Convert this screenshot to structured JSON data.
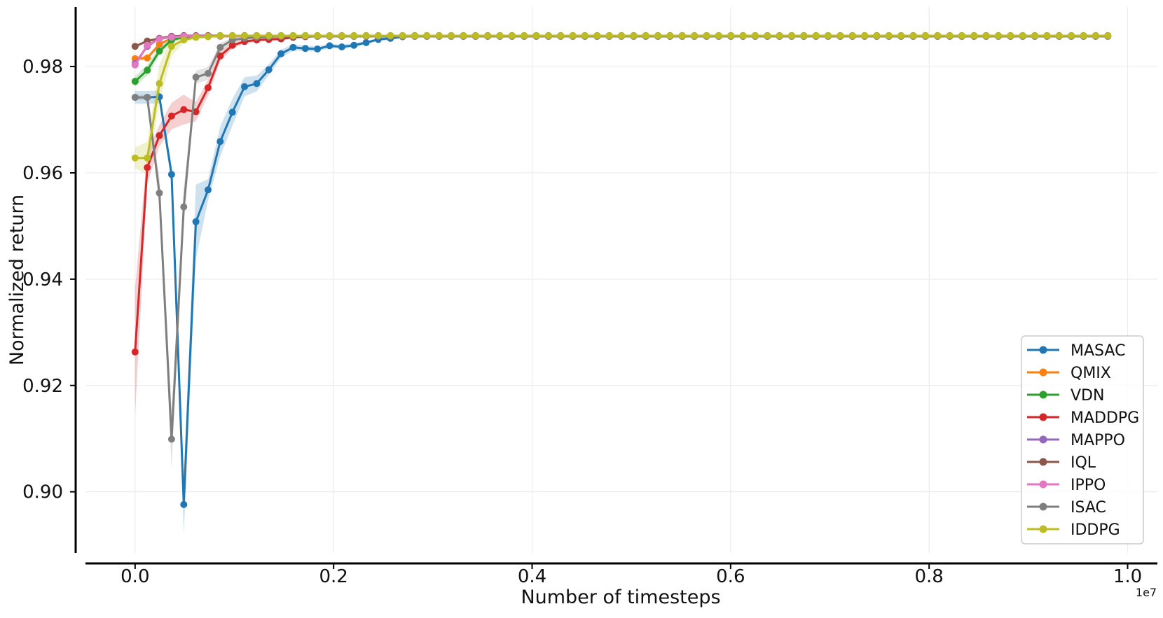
{
  "chart_data": {
    "type": "line",
    "xlabel": "Number of timesteps",
    "ylabel": "Normalized return",
    "x_scale_label": "1e7",
    "x_unit_multiplier": 10000000,
    "xlim": [
      -0.05,
      1.03
    ],
    "ylim": [
      0.8885,
      0.9912
    ],
    "xticks": [
      0.0,
      0.2,
      0.4,
      0.6,
      0.8,
      1.0
    ],
    "xtick_labels": [
      "0.0",
      "0.2",
      "0.4",
      "0.6",
      "0.8",
      "1.0"
    ],
    "yticks": [
      0.9,
      0.92,
      0.94,
      0.96,
      0.98
    ],
    "ytick_labels": [
      "0.90",
      "0.92",
      "0.94",
      "0.96",
      "0.98"
    ],
    "grid": true,
    "legend_position": "bottom-right",
    "x_start": 0.0,
    "x_step": 0.01225,
    "n_points": 81,
    "series": [
      {
        "name": "MASAC",
        "color": "#1f77b4",
        "head": [
          0.9742,
          0.9742,
          0.9743,
          0.9597,
          0.8976,
          0.9508,
          0.9568,
          0.9659,
          0.9714,
          0.9762,
          0.9768,
          0.9794,
          0.9824,
          0.9836,
          0.9834,
          0.9833,
          0.9839,
          0.9837,
          0.984,
          0.9845,
          0.9851,
          0.9853,
          0.9856
        ],
        "head_band": [
          0.0012,
          0.0012,
          0.0012,
          0.0018,
          0.0055,
          0.007,
          0.002,
          0.0028,
          0.0025,
          0.0018,
          0.0015,
          0.001,
          0.0008,
          0.0006,
          0.0005,
          0.0005,
          0.0004,
          0.0004,
          0.0004,
          0.0003,
          0.0003,
          0.0003,
          0.0002
        ],
        "tail_value": 0.9858
      },
      {
        "name": "QMIX",
        "color": "#ff7f0e",
        "head": [
          0.9815,
          0.9816,
          0.9842,
          0.9853,
          0.9856,
          0.9856,
          0.9857
        ],
        "head_band": [
          0.0004,
          0.0004,
          0.0003,
          0.0002,
          0.0002,
          0.0002,
          0.0002
        ],
        "tail_value": 0.9858
      },
      {
        "name": "VDN",
        "color": "#2ca02c",
        "head": [
          0.9772,
          0.9793,
          0.9829,
          0.985,
          0.9855,
          0.9856,
          0.9857
        ],
        "head_band": [
          0.001,
          0.001,
          0.0008,
          0.0004,
          0.0002,
          0.0002,
          0.0002
        ],
        "tail_value": 0.9857
      },
      {
        "name": "MADDPG",
        "color": "#d62728",
        "head": [
          0.9263,
          0.961,
          0.967,
          0.9707,
          0.9719,
          0.9715,
          0.976,
          0.982,
          0.984,
          0.9847,
          0.985,
          0.9851,
          0.9852,
          0.9855,
          0.9856
        ],
        "head_band": [
          0.012,
          0.003,
          0.002,
          0.0025,
          0.0028,
          0.0018,
          0.0015,
          0.001,
          0.0006,
          0.0004,
          0.0003,
          0.0003,
          0.0003,
          0.0002,
          0.0002
        ],
        "tail_value": 0.9857
      },
      {
        "name": "MAPPO",
        "color": "#9467bd",
        "head": [
          0.9806,
          0.9838,
          0.9853,
          0.9857
        ],
        "head_band": [
          0.0004,
          0.0003,
          0.0002,
          0.0002
        ],
        "tail_value": 0.9858
      },
      {
        "name": "IQL",
        "color": "#8c564b",
        "head": [
          0.9838,
          0.9848,
          0.9853,
          0.9856
        ],
        "head_band": [
          0.0002,
          0.0002,
          0.0002,
          0.0002
        ],
        "tail_value": 0.9858
      },
      {
        "name": "IPPO",
        "color": "#e377c2",
        "head": [
          0.9803,
          0.984,
          0.9852,
          0.9855
        ],
        "head_band": [
          0.0004,
          0.0003,
          0.0002,
          0.0002
        ],
        "tail_value": 0.9857
      },
      {
        "name": "ISAC",
        "color": "#7f7f7f",
        "head": [
          0.9742,
          0.9742,
          0.9562,
          0.9099,
          0.9536,
          0.978,
          0.9787,
          0.9836,
          0.985,
          0.9853,
          0.9855,
          0.9856
        ],
        "head_band": [
          0.0005,
          0.0005,
          0.003,
          0.0055,
          0.0035,
          0.0012,
          0.0012,
          0.0008,
          0.0004,
          0.0003,
          0.0002,
          0.0002
        ],
        "tail_value": 0.9857
      },
      {
        "name": "IDDPG",
        "color": "#bcbd22",
        "head": [
          0.9628,
          0.9628,
          0.9768,
          0.9838,
          0.985,
          0.9855,
          0.9856
        ],
        "head_band": [
          0.002,
          0.003,
          0.0035,
          0.0018,
          0.0006,
          0.0003,
          0.0002
        ],
        "tail_value": 0.9858
      }
    ]
  }
}
